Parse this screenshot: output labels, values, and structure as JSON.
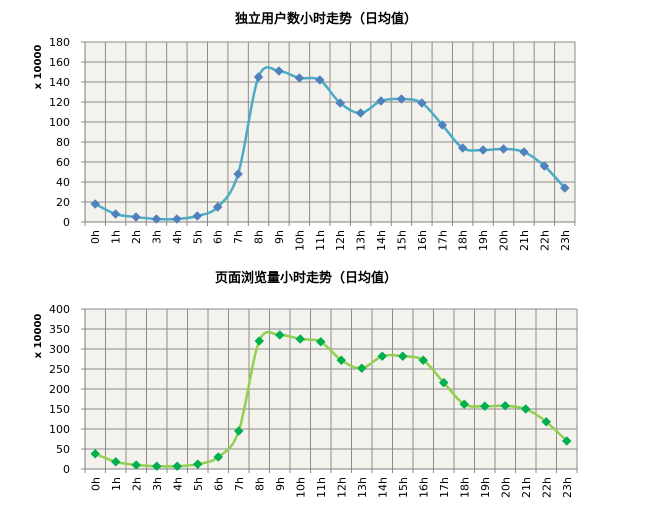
{
  "chart_data": [
    {
      "type": "line",
      "title": "独立用户数小时走势（日均值）",
      "ylabel": "x 10000",
      "xlabel": "",
      "categories": [
        "0h",
        "1h",
        "2h",
        "3h",
        "4h",
        "5h",
        "6h",
        "7h",
        "8h",
        "9h",
        "10h",
        "11h",
        "12h",
        "13h",
        "14h",
        "15h",
        "16h",
        "17h",
        "18h",
        "19h",
        "20h",
        "21h",
        "22h",
        "23h"
      ],
      "series": [
        {
          "values": [
            18,
            8,
            5,
            3,
            3,
            6,
            15,
            48,
            145,
            151,
            144,
            142,
            119,
            109,
            121,
            123,
            119,
            97,
            74,
            72,
            73,
            70,
            56,
            34
          ]
        }
      ],
      "ylim": [
        0,
        180
      ],
      "yticks": [
        0,
        20,
        40,
        60,
        80,
        100,
        120,
        140,
        160,
        180
      ],
      "grid": true,
      "colors": {
        "line": "#4bacc6",
        "marker": "#4f81bd"
      },
      "plot_background": "#f3f2ed"
    },
    {
      "type": "line",
      "title": "页面浏览量小时走势（日均值）",
      "ylabel": "x 10000",
      "xlabel": "",
      "categories": [
        "0h",
        "1h",
        "2h",
        "3h",
        "4h",
        "5h",
        "6h",
        "7h",
        "8h",
        "9h",
        "10h",
        "11h",
        "12h",
        "13h",
        "14h",
        "15h",
        "16h",
        "17h",
        "18h",
        "19h",
        "20h",
        "21h",
        "22h",
        "23h"
      ],
      "series": [
        {
          "values": [
            38,
            18,
            10,
            7,
            7,
            12,
            30,
            95,
            320,
            335,
            325,
            318,
            272,
            252,
            282,
            282,
            272,
            216,
            162,
            157,
            158,
            150,
            118,
            70
          ]
        }
      ],
      "ylim": [
        0,
        400
      ],
      "yticks": [
        0,
        50,
        100,
        150,
        200,
        250,
        300,
        350,
        400
      ],
      "grid": true,
      "colors": {
        "line": "#92d050",
        "marker": "#00b050"
      },
      "plot_background": "#f3f2ed"
    }
  ]
}
